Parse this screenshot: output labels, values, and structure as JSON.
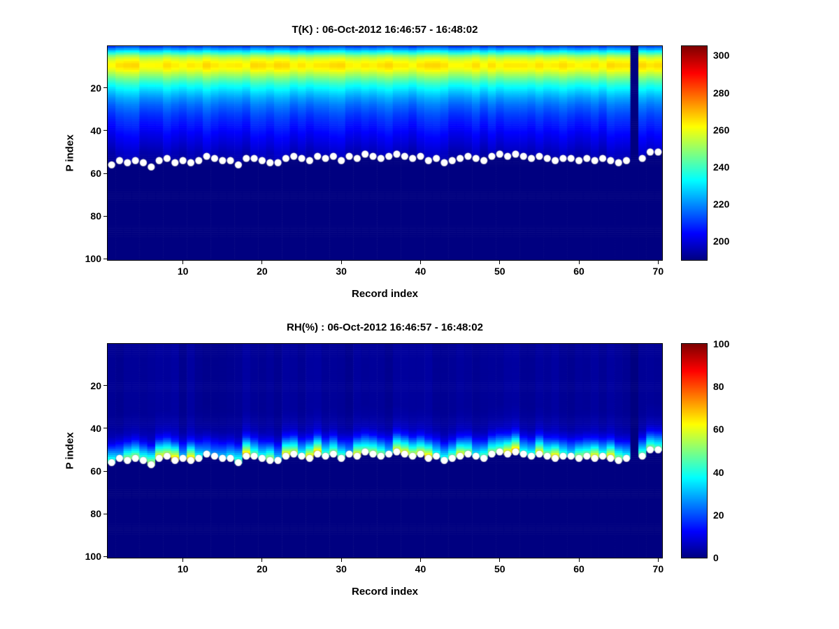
{
  "figure": {
    "background": "#ffffff"
  },
  "chart_data": [
    {
      "type": "heatmap",
      "id": "temperature",
      "title": "T(K) : 06-Oct-2012 16:46:57 - 16:48:02",
      "xlabel": "Record index",
      "ylabel": "P index",
      "colormap": "jet",
      "x_range": [
        0.5,
        70.5
      ],
      "y_range": [
        0.5,
        100.5
      ],
      "y_axis_reversed": true,
      "n_records": 70,
      "n_levels": 100,
      "x_ticks": [
        10,
        20,
        30,
        40,
        50,
        60,
        70
      ],
      "y_ticks": [
        20,
        40,
        60,
        80,
        100
      ],
      "vmin": 190,
      "vmax": 305,
      "colorbar_ticks": [
        200,
        220,
        240,
        260,
        280,
        300
      ],
      "missing_record": 67,
      "background_value": 190,
      "profile": {
        "p": [
          1,
          2,
          3,
          4,
          5,
          6,
          7,
          8,
          9,
          10,
          11,
          12,
          13,
          15,
          17,
          19,
          22,
          25,
          28,
          32,
          36,
          40,
          45,
          50,
          54,
          58
        ],
        "value": [
          214,
          222,
          231,
          240,
          249,
          255,
          259,
          262,
          264,
          264,
          262,
          259,
          255,
          248,
          241,
          235,
          228,
          222,
          217,
          212,
          208,
          205,
          201,
          197,
          195,
          193
        ]
      },
      "markers_p": [
        56,
        54,
        55,
        54,
        55,
        57,
        54,
        53,
        55,
        54,
        55,
        54,
        52,
        53,
        54,
        54,
        56,
        53,
        53,
        54,
        55,
        55,
        53,
        52,
        53,
        54,
        52,
        53,
        52,
        54,
        52,
        53,
        51,
        52,
        53,
        52,
        51,
        52,
        53,
        52,
        54,
        53,
        55,
        54,
        53,
        52,
        53,
        54,
        52,
        51,
        52,
        51,
        52,
        53,
        52,
        53,
        54,
        53,
        53,
        54,
        53,
        54,
        53,
        54,
        55,
        54,
        null,
        53,
        50,
        50
      ],
      "marker_style": {
        "shape": "circle",
        "fill": "#ffffff",
        "radius_px": 5.2
      }
    },
    {
      "type": "heatmap",
      "id": "relative-humidity",
      "title": "RH(%) : 06-Oct-2012 16:46:57 - 16:48:02",
      "xlabel": "Record index",
      "ylabel": "P index",
      "colormap": "jet",
      "x_range": [
        0.5,
        70.5
      ],
      "y_range": [
        0.5,
        100.5
      ],
      "y_axis_reversed": true,
      "n_records": 70,
      "n_levels": 100,
      "x_ticks": [
        10,
        20,
        30,
        40,
        50,
        60,
        70
      ],
      "y_ticks": [
        20,
        40,
        60,
        80,
        100
      ],
      "vmin": 0,
      "vmax": 100,
      "colorbar_ticks": [
        0,
        20,
        40,
        60,
        80,
        100
      ],
      "missing_record": 67,
      "background_value": 0,
      "profile_above_marker": {
        "d": [
          0,
          1,
          2,
          3,
          5,
          7,
          9,
          12,
          16,
          22,
          30
        ],
        "value": [
          40,
          42,
          38,
          33,
          25,
          17,
          10,
          5,
          3,
          2,
          2
        ]
      },
      "markers_p": [
        56,
        54,
        55,
        54,
        55,
        57,
        54,
        53,
        55,
        54,
        55,
        54,
        52,
        53,
        54,
        54,
        56,
        53,
        53,
        54,
        55,
        55,
        53,
        52,
        53,
        54,
        52,
        53,
        52,
        54,
        52,
        53,
        51,
        52,
        53,
        52,
        51,
        52,
        53,
        52,
        54,
        53,
        55,
        54,
        53,
        52,
        53,
        54,
        52,
        51,
        52,
        51,
        52,
        53,
        52,
        53,
        54,
        53,
        53,
        54,
        53,
        54,
        53,
        54,
        55,
        54,
        null,
        53,
        50,
        50
      ],
      "marker_style": {
        "shape": "circle",
        "fill": "#ffffff",
        "radius_px": 5.2
      }
    }
  ]
}
